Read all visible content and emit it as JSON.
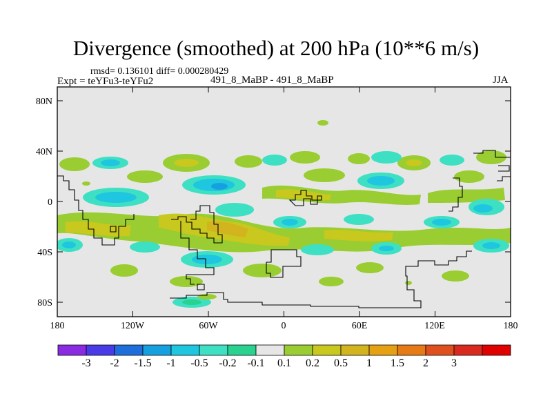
{
  "plot": {
    "title": "Divergence (smoothed) at 200 hPa (10**6 m/s)",
    "stats": "rmsd= 0.136101 diff= 0.000280429",
    "experiment": "Expt = teYFu3-teYFu2",
    "cases": "491_8_MaBP - 491_8_MaBP",
    "season": "JJA",
    "background_color": "#e6e6e6",
    "y_ticks": [
      "80N",
      "40N",
      "0",
      "40S",
      "80S"
    ],
    "x_ticks": [
      "180",
      "120W",
      "60W",
      "0",
      "60E",
      "120E",
      "180"
    ]
  },
  "colorbar": {
    "colors": [
      "#8a2be2",
      "#4a3be8",
      "#1e6fdc",
      "#16a0e0",
      "#1ec6df",
      "#3ee0c4",
      "#2ad28f",
      "#e6e6e6",
      "#9acd32",
      "#c8c81e",
      "#d2b41e",
      "#e6a014",
      "#e67a14",
      "#e0501e",
      "#d82a1e",
      "#e00000"
    ],
    "labels": [
      "-3",
      "-2",
      "-1.5",
      "-1",
      "-0.5",
      "-0.2",
      "-0.1",
      "0.1",
      "0.2",
      "0.5",
      "1",
      "1.5",
      "2",
      "3"
    ]
  }
}
